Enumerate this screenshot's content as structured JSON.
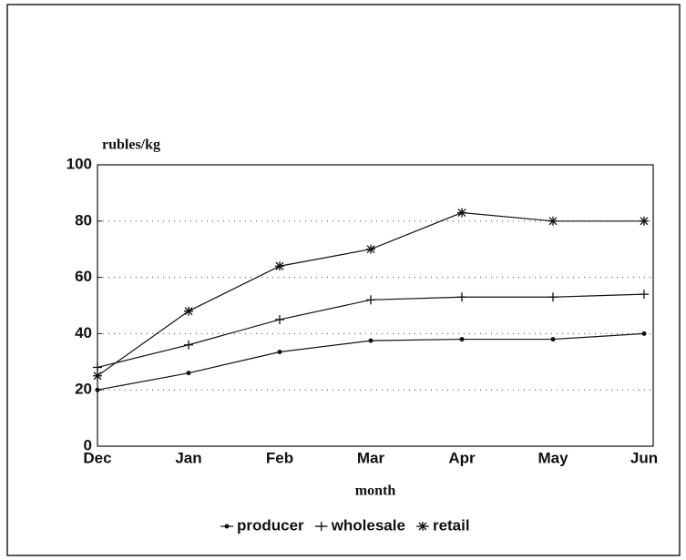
{
  "chart_data": {
    "type": "line",
    "ylabel": "rubles/kg",
    "xlabel": "month",
    "categories": [
      "Dec",
      "Jan",
      "Feb",
      "Mar",
      "Apr",
      "May",
      "Jun"
    ],
    "series": [
      {
        "name": "producer",
        "color": "#111111",
        "marker": "dot",
        "values": [
          20,
          26,
          33.5,
          37.5,
          38,
          38,
          40
        ]
      },
      {
        "name": "wholesale",
        "color": "#111111",
        "marker": "plus",
        "values": [
          28,
          36,
          45,
          52,
          53,
          53,
          54
        ]
      },
      {
        "name": "retail",
        "color": "#111111",
        "marker": "star",
        "values": [
          25,
          48,
          64,
          70,
          83,
          80,
          80
        ]
      }
    ],
    "ylim": [
      0,
      100
    ],
    "yticks": [
      0,
      20,
      40,
      60,
      80,
      100
    ],
    "grid": true,
    "legend": "bottom"
  }
}
